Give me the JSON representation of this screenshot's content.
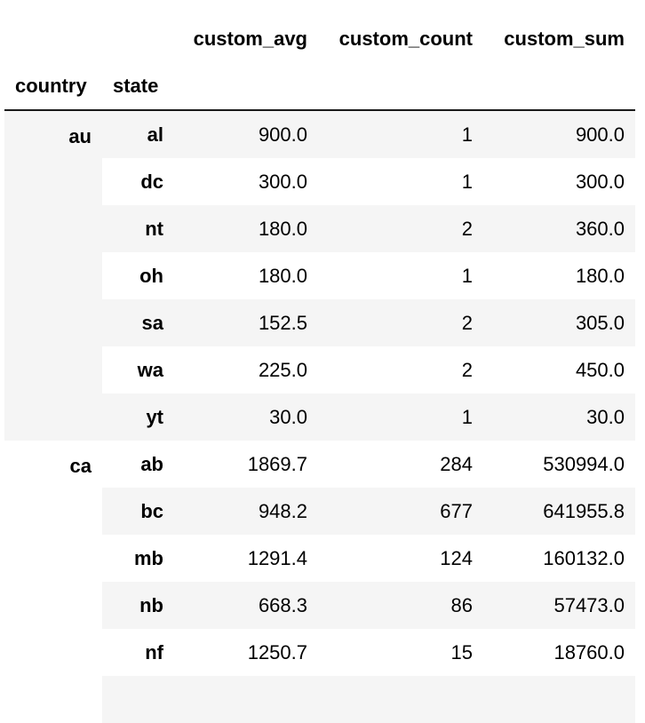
{
  "table": {
    "columns": [
      "custom_avg",
      "custom_count",
      "custom_sum"
    ],
    "index_names": [
      "country",
      "state"
    ],
    "groups": [
      {
        "country": "au",
        "rows": [
          {
            "state": "al",
            "custom_avg": "900.0",
            "custom_count": "1",
            "custom_sum": "900.0"
          },
          {
            "state": "dc",
            "custom_avg": "300.0",
            "custom_count": "1",
            "custom_sum": "300.0"
          },
          {
            "state": "nt",
            "custom_avg": "180.0",
            "custom_count": "2",
            "custom_sum": "360.0"
          },
          {
            "state": "oh",
            "custom_avg": "180.0",
            "custom_count": "1",
            "custom_sum": "180.0"
          },
          {
            "state": "sa",
            "custom_avg": "152.5",
            "custom_count": "2",
            "custom_sum": "305.0"
          },
          {
            "state": "wa",
            "custom_avg": "225.0",
            "custom_count": "2",
            "custom_sum": "450.0"
          },
          {
            "state": "yt",
            "custom_avg": "30.0",
            "custom_count": "1",
            "custom_sum": "30.0"
          }
        ]
      },
      {
        "country": "ca",
        "rows": [
          {
            "state": "ab",
            "custom_avg": "1869.7",
            "custom_count": "284",
            "custom_sum": "530994.0"
          },
          {
            "state": "bc",
            "custom_avg": "948.2",
            "custom_count": "677",
            "custom_sum": "641955.8"
          },
          {
            "state": "mb",
            "custom_avg": "1291.4",
            "custom_count": "124",
            "custom_sum": "160132.0"
          },
          {
            "state": "nb",
            "custom_avg": "668.3",
            "custom_count": "86",
            "custom_sum": "57473.0"
          },
          {
            "state": "nf",
            "custom_avg": "1250.7",
            "custom_count": "15",
            "custom_sum": "18760.0"
          }
        ]
      }
    ]
  }
}
